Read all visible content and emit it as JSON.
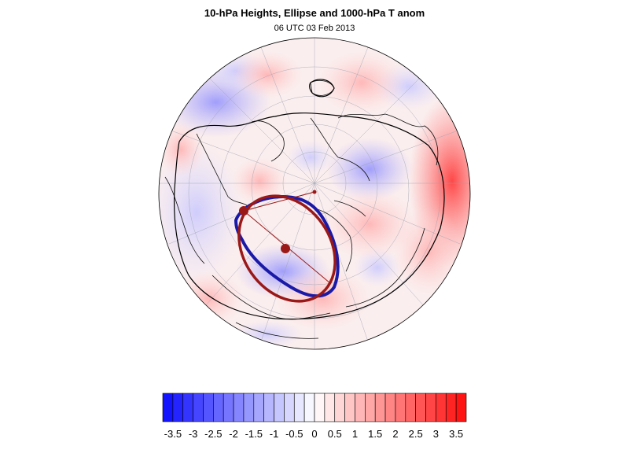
{
  "title": "10-hPa Heights, Ellipse and 1000-hPa T anom",
  "subtitle": "06 UTC 03 Feb 2013",
  "colorbar": {
    "min": -3.75,
    "max": 3.75,
    "step": 0.25,
    "low_color": "#1414ff",
    "mid_color": "#ffffff",
    "high_color": "#ff1414",
    "tick_labels": [
      "-3.5",
      "-3",
      "-2.5",
      "-2",
      "-1.5",
      "-1",
      "-0.5",
      "0",
      "0.5",
      "1",
      "1.5",
      "2",
      "2.5",
      "3",
      "3.5"
    ]
  },
  "map": {
    "projection": "orthographic-polar",
    "hemisphere": "north",
    "field": "1000-hPa temperature anomaly",
    "contour_field": "10-hPa heights",
    "contour_color": "#000000",
    "ellipse_colors": {
      "observed": "#1a1aa8",
      "fitted": "#9a1818"
    }
  }
}
